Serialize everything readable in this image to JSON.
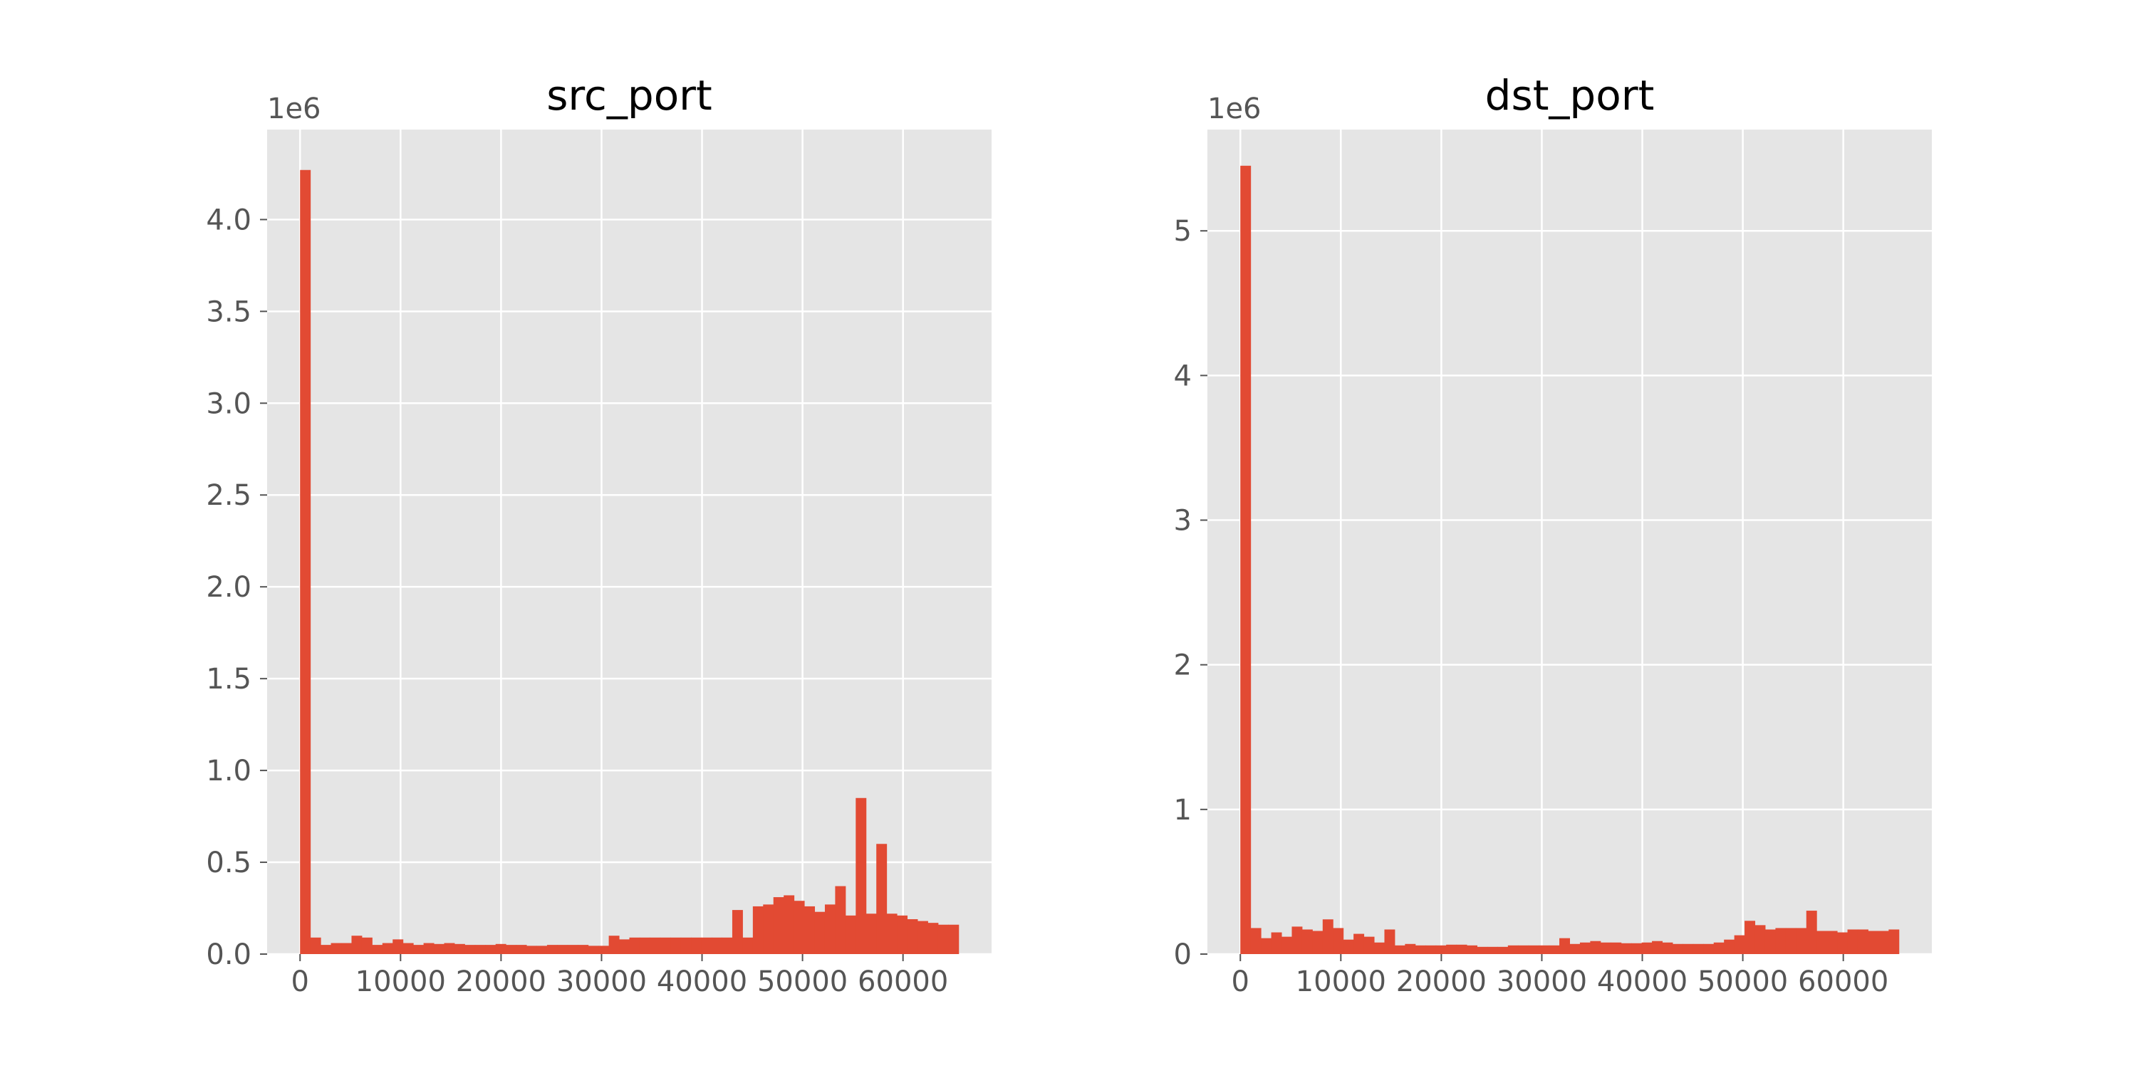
{
  "colors": {
    "bar": "#E24A33",
    "plot_background": "#E5E5E5",
    "grid": "#FFFFFF",
    "tick": "#555555"
  },
  "chart_data": [
    {
      "type": "bar",
      "title": "src_port",
      "xlabel": "",
      "ylabel": "",
      "y_offset_label": "1e6",
      "grid": true,
      "xlim": [
        -3277,
        68812
      ],
      "ylim": [
        0,
        4.49
      ],
      "bin_edges": [
        0,
        65535
      ],
      "bin_count": 64,
      "x_ticks": [
        0,
        10000,
        20000,
        30000,
        40000,
        50000,
        60000
      ],
      "y_ticks": [
        0.0,
        0.5,
        1.0,
        1.5,
        2.0,
        2.5,
        3.0,
        3.5,
        4.0
      ],
      "values": [
        4.27,
        0.09,
        0.05,
        0.06,
        0.06,
        0.1,
        0.09,
        0.05,
        0.06,
        0.08,
        0.06,
        0.05,
        0.06,
        0.055,
        0.06,
        0.055,
        0.05,
        0.05,
        0.05,
        0.055,
        0.05,
        0.05,
        0.045,
        0.045,
        0.05,
        0.05,
        0.05,
        0.05,
        0.045,
        0.045,
        0.1,
        0.08,
        0.09,
        0.09,
        0.09,
        0.09,
        0.09,
        0.09,
        0.09,
        0.09,
        0.09,
        0.09,
        0.24,
        0.09,
        0.26,
        0.27,
        0.31,
        0.32,
        0.29,
        0.26,
        0.23,
        0.27,
        0.37,
        0.21,
        0.85,
        0.22,
        0.6,
        0.22,
        0.21,
        0.19,
        0.18,
        0.17,
        0.16,
        0.16
      ]
    },
    {
      "type": "bar",
      "title": "dst_port",
      "xlabel": "",
      "ylabel": "",
      "y_offset_label": "1e6",
      "grid": true,
      "xlim": [
        -3277,
        68812
      ],
      "ylim": [
        0,
        5.7
      ],
      "bin_edges": [
        0,
        65535
      ],
      "bin_count": 64,
      "x_ticks": [
        0,
        10000,
        20000,
        30000,
        40000,
        50000,
        60000
      ],
      "y_ticks": [
        0,
        1,
        2,
        3,
        4,
        5
      ],
      "values": [
        5.45,
        0.18,
        0.11,
        0.15,
        0.12,
        0.19,
        0.17,
        0.16,
        0.24,
        0.18,
        0.1,
        0.14,
        0.12,
        0.08,
        0.17,
        0.06,
        0.07,
        0.06,
        0.06,
        0.06,
        0.065,
        0.065,
        0.06,
        0.05,
        0.05,
        0.05,
        0.06,
        0.06,
        0.06,
        0.06,
        0.06,
        0.11,
        0.07,
        0.08,
        0.09,
        0.08,
        0.08,
        0.075,
        0.075,
        0.08,
        0.09,
        0.08,
        0.07,
        0.07,
        0.07,
        0.07,
        0.08,
        0.1,
        0.13,
        0.23,
        0.2,
        0.17,
        0.18,
        0.18,
        0.18,
        0.3,
        0.16,
        0.16,
        0.15,
        0.17,
        0.17,
        0.16,
        0.16,
        0.17
      ]
    }
  ]
}
